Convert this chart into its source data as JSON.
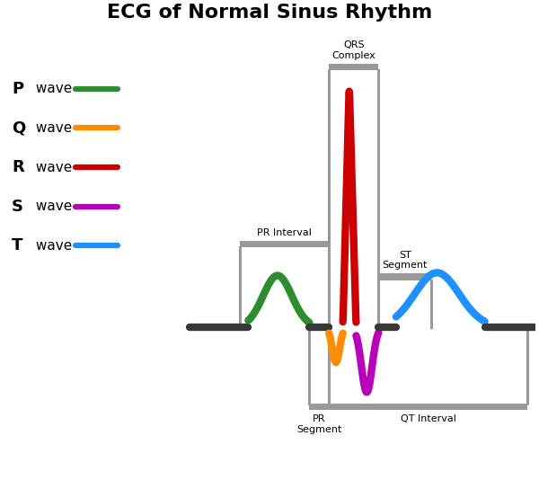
{
  "title": "ECG of Normal Sinus Rhythm",
  "title_fontsize": 16,
  "title_fontweight": "bold",
  "background_color": "#ffffff",
  "wave_colors": {
    "P": "#2e8b2e",
    "Q": "#ff8c00",
    "R": "#cc0000",
    "S": "#bb00bb",
    "T": "#1e90ff"
  },
  "baseline_color": "#383838",
  "bracket_color": "#999999",
  "legend_labels": [
    "P wave",
    "Q wave",
    "R wave",
    "S wave",
    "T wave"
  ],
  "legend_colors": [
    "#2e8b2e",
    "#ff8c00",
    "#cc0000",
    "#bb00bb",
    "#1e90ff"
  ],
  "linewidth": 6.0,
  "xlim": [
    0,
    10
  ],
  "ylim": [
    -1.6,
    3.2
  ]
}
